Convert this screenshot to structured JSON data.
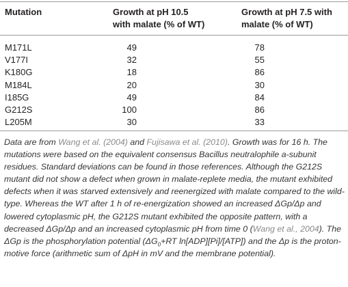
{
  "table": {
    "header": [
      "Mutation",
      [
        "Growth at pH 10.5",
        "with malate (% of WT)"
      ],
      [
        "Growth at pH 7.5  with",
        "malate (% of WT)"
      ]
    ],
    "rows": [
      [
        "M171L",
        49,
        78
      ],
      [
        "V177I",
        32,
        55
      ],
      [
        "K180G",
        18,
        86
      ],
      [
        "M184L",
        20,
        30
      ],
      [
        "I185G",
        49,
        84
      ],
      [
        "G212S",
        100,
        86
      ],
      [
        "L205M",
        30,
        33
      ]
    ]
  },
  "footnote": [
    "Data are from ",
    "Wang et al. (2004)",
    " and ",
    "Fujisawa et al. (2010)",
    ". Growth was for 16 h. The mutations were based on the equivalent consensus Bacillus neutralophile a-subunit residues. Standard deviations can be found in those references. Although the G212S mutant did not show a defect when grown in malate-replete media, the mutant exhibited defects when it was starved extensively and reenergized with malate compared to the wild-type. Whereas the WT after 1 h of re-energization showed an increased ΔGp/Δp and lowered cytoplasmic pH, the G212S mutant exhibited the opposite pattern, with a decreased ΔGp/Δp and an increased cytoplasmic pH from time 0 (",
    "Wang et al., 2004",
    "). The ΔGp is the phosphorylation potential (ΔG",
    "0",
    "+RT ln[ADP][Pi]/[ATP]) and the Δp is the proton-motive force (arithmetic sum of ΔpH in mV and the membrane potential)."
  ]
}
